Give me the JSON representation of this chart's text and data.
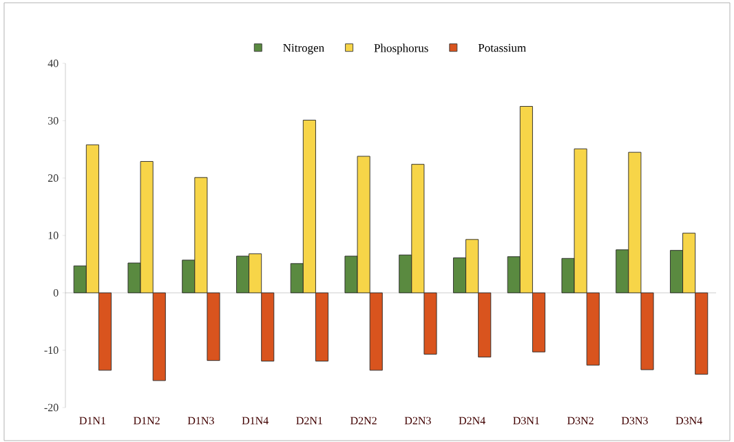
{
  "chart_data": {
    "type": "bar",
    "categories": [
      "D1N1",
      "D1N2",
      "D1N3",
      "D1N4",
      "D2N1",
      "D2N2",
      "D2N3",
      "D2N4",
      "D3N1",
      "D3N2",
      "D3N3",
      "D3N4"
    ],
    "series": [
      {
        "name": "Nitrogen",
        "color": "#5a8a40",
        "values": [
          4.7,
          5.2,
          5.7,
          6.4,
          5.1,
          6.4,
          6.6,
          6.1,
          6.3,
          6.0,
          7.5,
          7.4
        ]
      },
      {
        "name": "Phosphorus",
        "color": "#f7d548",
        "values": [
          25.8,
          22.9,
          20.1,
          6.8,
          30.1,
          23.8,
          22.4,
          9.3,
          32.5,
          25.1,
          24.5,
          10.4
        ]
      },
      {
        "name": "Potassium",
        "color": "#d9541e",
        "values": [
          -13.5,
          -15.3,
          -11.8,
          -11.9,
          -11.9,
          -13.5,
          -10.7,
          -11.2,
          -10.3,
          -12.6,
          -13.4,
          -14.2
        ]
      }
    ],
    "ylim": [
      -20,
      40
    ],
    "yticks": [
      -20,
      -10,
      0,
      10,
      20,
      30,
      40
    ],
    "legend": "top"
  }
}
